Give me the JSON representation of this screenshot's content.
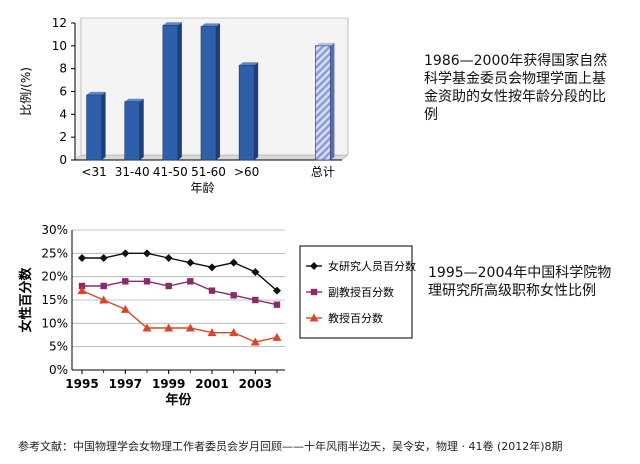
{
  "charts": [
    {
      "type": "bar",
      "categories": [
        "<31",
        "31-40",
        "41-50",
        "51-60",
        ">60",
        "",
        "总计"
      ],
      "values": [
        5.7,
        5.1,
        11.8,
        11.7,
        8.3,
        null,
        10.0
      ],
      "xlabel": "年龄",
      "ylabel": "比例/(%)",
      "ylim": [
        0,
        12
      ],
      "yticks": [
        0,
        2,
        4,
        6,
        8,
        10,
        12
      ],
      "bar_color": "#2f5fa8",
      "total_color": "#8a9ad8",
      "caption": "1986—2000年获得国家自然科学基金委员会物理学面上基金资助的女性按年龄分段的比例"
    },
    {
      "type": "line",
      "x": [
        1995,
        1996,
        1997,
        1998,
        1999,
        2000,
        2001,
        2002,
        2003,
        2004
      ],
      "xticks": [
        "1995",
        "1997",
        "1999",
        "2001",
        "2003"
      ],
      "xlabel": "年份",
      "ylabel": "女性百分数",
      "ylim": [
        0,
        30
      ],
      "yticks": [
        "0%",
        "5%",
        "10%",
        "15%",
        "20%",
        "25%",
        "30%"
      ],
      "legend_position": "right",
      "series": [
        {
          "name": "女研究人员百分数",
          "color": "#111111",
          "marker": "diamond",
          "values": [
            24,
            24,
            25,
            25,
            24,
            23,
            22,
            23,
            21,
            17
          ]
        },
        {
          "name": "副教授百分数",
          "color": "#8b2a6b",
          "marker": "square",
          "values": [
            18,
            18,
            19,
            19,
            18,
            19,
            17,
            16,
            15,
            14
          ]
        },
        {
          "name": "教授百分数",
          "color": "#d9472b",
          "marker": "triangle",
          "values": [
            17,
            15,
            13,
            9,
            9,
            9,
            8,
            8,
            6,
            7
          ]
        }
      ],
      "caption": "1995—2004年中国科学院物理研究所高级职称女性比例"
    }
  ],
  "reference": "参考文献：中国物理学会女物理工作者委员会岁月回顾——十年风雨半边天，吴令安，物理 · 41卷 (2012年)8期"
}
